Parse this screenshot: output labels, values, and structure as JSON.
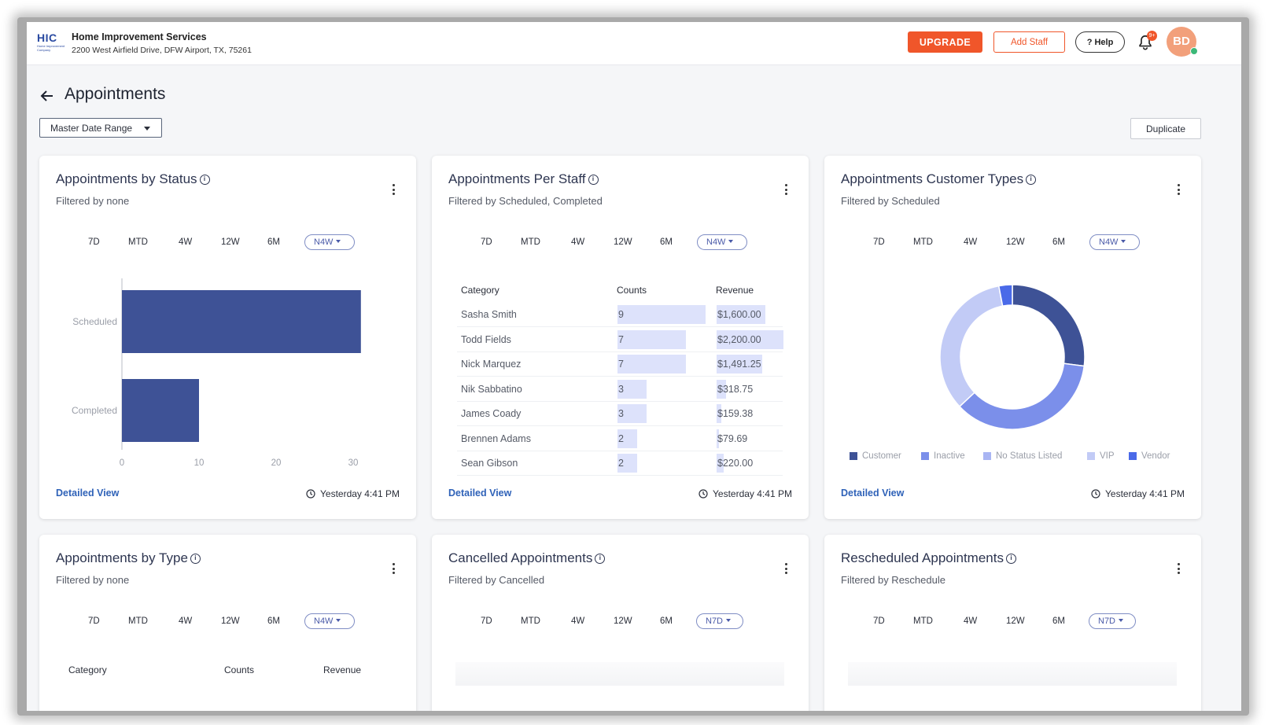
{
  "header": {
    "logo_text": "HIC",
    "logo_sub": "Home Improvement Company",
    "company_name": "Home Improvement Services",
    "company_address": "2200 West Airfield Drive, DFW Airport, TX, 75261",
    "upgrade_label": "UPGRADE",
    "add_staff_label": "Add Staff",
    "help_label": "? Help",
    "notification_badge": "9+",
    "avatar_initials": "BD"
  },
  "page": {
    "title": "Appointments",
    "date_range_label": "Master Date Range",
    "duplicate_label": "Duplicate"
  },
  "range_labels": [
    "7D",
    "MTD",
    "4W",
    "12W",
    "6M"
  ],
  "common": {
    "detailed_view": "Detailed View",
    "updated": "Yesterday 4:41 PM"
  },
  "cards": {
    "status": {
      "title": "Appointments by Status",
      "filter": "Filtered by none",
      "selected_range": "N4W",
      "chart_data": {
        "type": "bar",
        "orientation": "horizontal",
        "categories": [
          "Scheduled",
          "Completed"
        ],
        "values": [
          31,
          10
        ],
        "xlim": [
          0,
          30
        ],
        "xticks": [
          "0",
          "10",
          "20",
          "30"
        ]
      }
    },
    "per_staff": {
      "title": "Appointments Per Staff",
      "filter": "Filtered by Scheduled, Completed",
      "selected_range": "N4W",
      "columns": [
        "Category",
        "Counts",
        "Revenue"
      ],
      "rows": [
        {
          "category": "Sasha Smith",
          "count": 9,
          "count_label": "9",
          "revenue": 1600.0,
          "revenue_label": "$1,600.00"
        },
        {
          "category": "Todd Fields",
          "count": 7,
          "count_label": "7",
          "revenue": 2200.0,
          "revenue_label": "$2,200.00"
        },
        {
          "category": "Nick Marquez",
          "count": 7,
          "count_label": "7",
          "revenue": 1491.25,
          "revenue_label": "$1,491.25"
        },
        {
          "category": "Nik Sabbatino",
          "count": 3,
          "count_label": "3",
          "revenue": 318.75,
          "revenue_label": "$318.75"
        },
        {
          "category": "James Coady",
          "count": 3,
          "count_label": "3",
          "revenue": 159.38,
          "revenue_label": "$159.38"
        },
        {
          "category": "Brennen Adams",
          "count": 2,
          "count_label": "2",
          "revenue": 79.69,
          "revenue_label": "$79.69"
        },
        {
          "category": "Sean Gibson",
          "count": 2,
          "count_label": "2",
          "revenue": 220.0,
          "revenue_label": "$220.00"
        }
      ]
    },
    "customer_types": {
      "title": "Appointments Customer Types",
      "filter": "Filtered by Scheduled",
      "selected_range": "N4W",
      "chart_data": {
        "type": "pie",
        "donut": true,
        "series": [
          {
            "name": "Customer",
            "value": 27,
            "color": "#3e5296"
          },
          {
            "name": "Inactive",
            "value": 36,
            "color": "#7b8fea"
          },
          {
            "name": "No Status Listed",
            "value": 0,
            "color": "#a9b5f3"
          },
          {
            "name": "VIP",
            "value": 34,
            "color": "#c2cbf6"
          },
          {
            "name": "Vendor",
            "value": 3,
            "color": "#4a6ae8"
          }
        ]
      }
    },
    "by_type": {
      "title": "Appointments by Type",
      "filter": "Filtered by none",
      "selected_range": "N4W",
      "columns": [
        "Category",
        "Counts",
        "Revenue"
      ]
    },
    "cancelled": {
      "title": "Cancelled Appointments",
      "filter": "Filtered by Cancelled",
      "selected_range": "N7D"
    },
    "rescheduled": {
      "title": "Rescheduled Appointments",
      "filter": "Filtered by Reschedule",
      "selected_range": "N7D"
    }
  },
  "colors": {
    "accent_orange": "#f0562a",
    "bar_blue": "#3e5296",
    "link_blue": "#2f62b8",
    "table_bar": "#dde2fb"
  }
}
